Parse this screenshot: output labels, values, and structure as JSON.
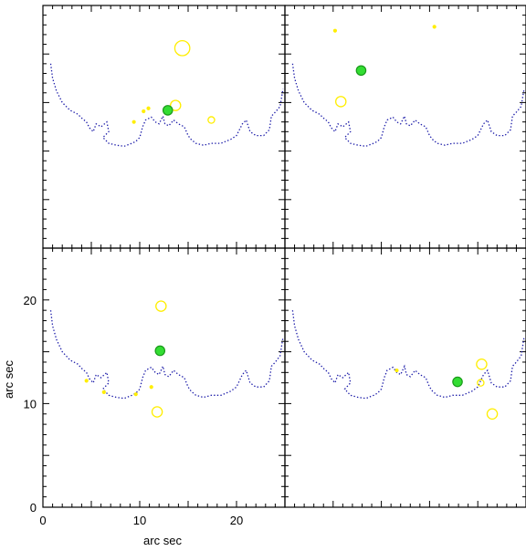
{
  "chart_data": {
    "type": "scatter",
    "layout": "2x2 panels sharing axes",
    "xlabel": "arc sec",
    "ylabel": "arc sec",
    "xlim": [
      0,
      25
    ],
    "ylim": [
      0,
      25
    ],
    "x_ticks": [
      0,
      10,
      20
    ],
    "y_ticks": [
      0,
      10,
      20
    ],
    "grid": false,
    "colors": {
      "contour": "#1a1aa8",
      "sources": "#ffee00",
      "highlight": "#33dd33"
    },
    "contour": [
      [
        0.8,
        19.0
      ],
      [
        1.0,
        17.5
      ],
      [
        1.4,
        16.2
      ],
      [
        2.0,
        15.0
      ],
      [
        2.8,
        14.2
      ],
      [
        3.6,
        13.8
      ],
      [
        4.0,
        13.4
      ],
      [
        4.5,
        13.0
      ],
      [
        4.8,
        12.4
      ],
      [
        5.2,
        12.0
      ],
      [
        5.5,
        12.8
      ],
      [
        6.0,
        12.5
      ],
      [
        6.6,
        13.0
      ],
      [
        6.8,
        12.0
      ],
      [
        6.2,
        11.4
      ],
      [
        6.8,
        10.8
      ],
      [
        7.6,
        10.6
      ],
      [
        8.4,
        10.5
      ],
      [
        9.2,
        10.8
      ],
      [
        9.6,
        11.0
      ],
      [
        10.0,
        11.4
      ],
      [
        10.3,
        12.5
      ],
      [
        10.6,
        13.2
      ],
      [
        11.2,
        13.5
      ],
      [
        11.6,
        13.0
      ],
      [
        12.0,
        12.8
      ],
      [
        12.4,
        13.6
      ],
      [
        12.6,
        12.8
      ],
      [
        13.0,
        12.6
      ],
      [
        13.5,
        13.2
      ],
      [
        14.0,
        12.8
      ],
      [
        14.6,
        12.5
      ],
      [
        15.0,
        11.6
      ],
      [
        15.3,
        11.2
      ],
      [
        15.8,
        10.8
      ],
      [
        16.6,
        10.6
      ],
      [
        17.4,
        10.8
      ],
      [
        18.4,
        10.8
      ],
      [
        19.4,
        11.2
      ],
      [
        20.0,
        11.6
      ],
      [
        20.6,
        12.8
      ],
      [
        21.0,
        13.2
      ],
      [
        21.4,
        12.0
      ],
      [
        22.0,
        11.6
      ],
      [
        22.8,
        11.6
      ],
      [
        23.4,
        12.2
      ],
      [
        23.6,
        13.6
      ],
      [
        24.0,
        14.0
      ],
      [
        24.5,
        14.6
      ],
      [
        24.8,
        16.4
      ]
    ],
    "panels": [
      {
        "sources": [
          {
            "x": 14.4,
            "y": 20.6,
            "size": "large"
          },
          {
            "x": 13.7,
            "y": 14.7,
            "size": "medium"
          },
          {
            "x": 17.4,
            "y": 13.2,
            "size": "small"
          },
          {
            "x": 9.4,
            "y": 13.0,
            "size": "tiny"
          },
          {
            "x": 10.4,
            "y": 14.1,
            "size": "tiny"
          },
          {
            "x": 10.9,
            "y": 14.4,
            "size": "tiny"
          }
        ],
        "highlight": {
          "x": 12.9,
          "y": 14.2
        }
      },
      {
        "sources": [
          {
            "x": 5.8,
            "y": 15.1,
            "size": "medium"
          },
          {
            "x": 5.2,
            "y": 22.4,
            "size": "tiny"
          },
          {
            "x": 15.5,
            "y": 22.8,
            "size": "tiny"
          }
        ],
        "highlight": {
          "x": 7.9,
          "y": 18.3
        }
      },
      {
        "sources": [
          {
            "x": 12.2,
            "y": 19.4,
            "size": "medium"
          },
          {
            "x": 11.8,
            "y": 9.2,
            "size": "medium"
          },
          {
            "x": 4.5,
            "y": 12.2,
            "size": "tiny"
          },
          {
            "x": 6.3,
            "y": 11.1,
            "size": "tiny"
          },
          {
            "x": 9.6,
            "y": 10.9,
            "size": "tiny"
          },
          {
            "x": 11.2,
            "y": 11.6,
            "size": "tiny"
          }
        ],
        "highlight": {
          "x": 12.1,
          "y": 15.1
        }
      },
      {
        "sources": [
          {
            "x": 20.4,
            "y": 13.8,
            "size": "medium"
          },
          {
            "x": 20.3,
            "y": 12.0,
            "size": "small"
          },
          {
            "x": 21.5,
            "y": 9.0,
            "size": "medium"
          },
          {
            "x": 11.6,
            "y": 13.2,
            "size": "tiny"
          }
        ],
        "highlight": {
          "x": 17.9,
          "y": 12.1
        }
      }
    ]
  }
}
